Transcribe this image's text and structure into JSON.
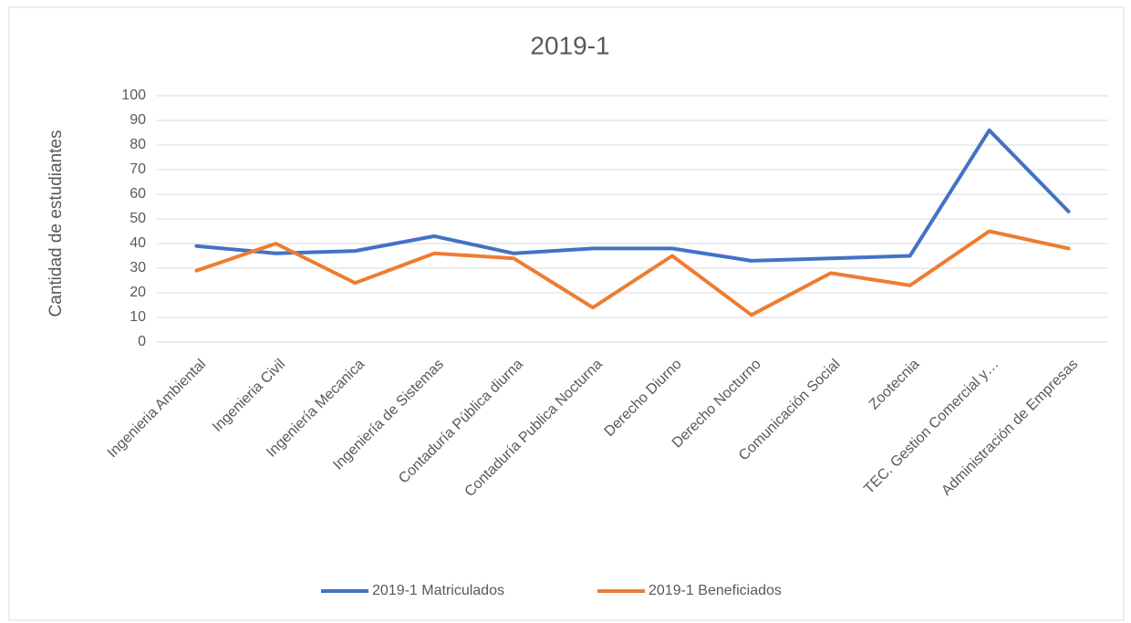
{
  "chart_data": {
    "type": "line",
    "title": "2019-1",
    "y_label": "Cantidad de estudiantes",
    "categories": [
      "Ingenieria Ambiental",
      "Ingenieria Civil",
      "Ingeniería Mecanica",
      "Ingeniería de Sistemas",
      "Contaduría Pública diurna",
      "Contaduría Publica Nocturna",
      "Derecho Diurno",
      "Derecho Nocturno",
      "Comunicación Social",
      "Zootecnia",
      "TEC. Gestion Comercial y…",
      "Administración de Empresas"
    ],
    "series": [
      {
        "name": "2019-1 Matriculados",
        "color": "#4472c4",
        "values": [
          39,
          36,
          37,
          43,
          36,
          38,
          38,
          33,
          34,
          35,
          86,
          53
        ]
      },
      {
        "name": "2019-1 Beneficiados",
        "color": "#ed7d31",
        "values": [
          29,
          40,
          24,
          36,
          34,
          14,
          35,
          11,
          28,
          23,
          45,
          38
        ]
      }
    ],
    "ylim": [
      0,
      100
    ],
    "yticks": [
      0,
      10,
      20,
      30,
      40,
      50,
      60,
      70,
      80,
      90,
      100
    ],
    "grid": true,
    "legend": "bottom"
  }
}
